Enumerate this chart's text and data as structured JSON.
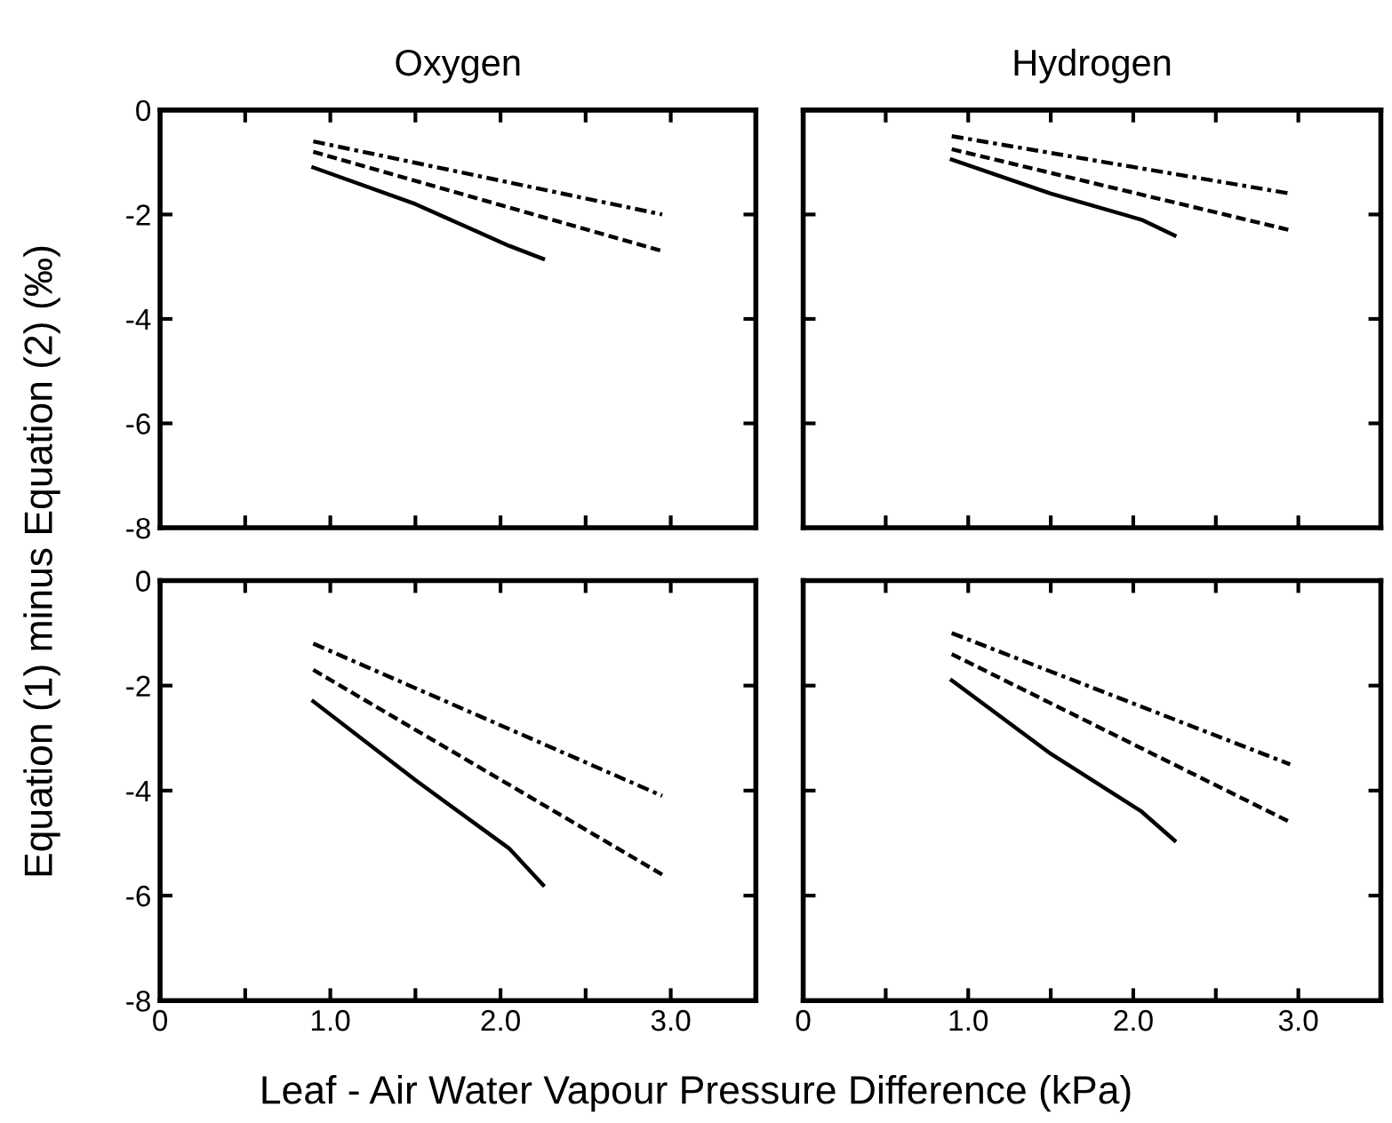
{
  "chart_data": [
    {
      "type": "line",
      "title": "Oxygen",
      "ylabel": "Equation (1) minus Equation (2) (‰)",
      "xlim": [
        0,
        3.5
      ],
      "ylim": [
        -8,
        0
      ],
      "xticks": [
        {
          "value": 0.5,
          "label": null
        },
        {
          "value": 1.0,
          "label": null
        },
        {
          "value": 1.5,
          "label": null
        },
        {
          "value": 2.0,
          "label": null
        },
        {
          "value": 2.5,
          "label": null
        },
        {
          "value": 3.0,
          "label": null
        }
      ],
      "yticks": [
        -8,
        -6,
        -4,
        -2,
        0
      ],
      "tick_labels": "y",
      "grid": false,
      "series": [
        {
          "color": "#000000",
          "line_style": "solid",
          "x": [
            0.9,
            1.5,
            2.05,
            2.25
          ],
          "values": [
            -1.1,
            -1.8,
            -2.6,
            -2.85
          ]
        },
        {
          "color": "#000000",
          "line_style": "dashed",
          "x": [
            0.9,
            2.95
          ],
          "values": [
            -0.8,
            -2.7
          ]
        },
        {
          "color": "#000000",
          "line_style": "dashdot",
          "x": [
            0.9,
            2.95
          ],
          "values": [
            -0.6,
            -2.0
          ]
        }
      ]
    },
    {
      "type": "line",
      "title": "Hydrogen",
      "xlim": [
        0,
        3.5
      ],
      "ylim": [
        -8,
        0
      ],
      "xticks": [
        {
          "value": 0.5,
          "label": null
        },
        {
          "value": 1.0,
          "label": null
        },
        {
          "value": 1.5,
          "label": null
        },
        {
          "value": 2.0,
          "label": null
        },
        {
          "value": 2.5,
          "label": null
        },
        {
          "value": 3.0,
          "label": null
        }
      ],
      "yticks": [
        {
          "value": -6,
          "label": null
        },
        {
          "value": -4,
          "label": null
        },
        {
          "value": -2,
          "label": null
        }
      ],
      "tick_labels": false,
      "grid": false,
      "series": [
        {
          "color": "#000000",
          "line_style": "solid",
          "x": [
            0.9,
            1.5,
            2.05,
            2.25
          ],
          "values": [
            -0.95,
            -1.6,
            -2.1,
            -2.4
          ]
        },
        {
          "color": "#000000",
          "line_style": "dashed",
          "x": [
            0.9,
            2.95
          ],
          "values": [
            -0.75,
            -2.3
          ]
        },
        {
          "color": "#000000",
          "line_style": "dashdot",
          "x": [
            0.9,
            2.95
          ],
          "values": [
            -0.5,
            -1.6
          ]
        }
      ]
    },
    {
      "type": "line",
      "xlabel": "Leaf - Air Water Vapour Pressure Difference (kPa)",
      "xlim": [
        0,
        3.5
      ],
      "ylim": [
        -8,
        0
      ],
      "xticks": [
        0,
        {
          "value": 0.5,
          "label": null
        },
        {
          "value": 1.0,
          "label": "1.0"
        },
        {
          "value": 1.5,
          "label": null
        },
        {
          "value": 2.0,
          "label": "2.0"
        },
        {
          "value": 2.5,
          "label": null
        },
        {
          "value": 3.0,
          "label": "3.0"
        }
      ],
      "yticks": [
        -8,
        -6,
        -4,
        -2,
        0
      ],
      "grid": false,
      "series": [
        {
          "color": "#000000",
          "line_style": "solid",
          "x": [
            0.9,
            1.5,
            2.05,
            2.25
          ],
          "values": [
            -2.3,
            -3.8,
            -5.1,
            -5.8
          ]
        },
        {
          "color": "#000000",
          "line_style": "dashed",
          "x": [
            0.9,
            2.95
          ],
          "values": [
            -1.7,
            -5.6
          ]
        },
        {
          "color": "#000000",
          "line_style": "dashdot",
          "x": [
            0.9,
            2.95
          ],
          "values": [
            -1.2,
            -4.1
          ]
        }
      ]
    },
    {
      "type": "line",
      "xlim": [
        0,
        3.5
      ],
      "ylim": [
        -8,
        0
      ],
      "xticks": [
        0,
        {
          "value": 0.5,
          "label": null
        },
        {
          "value": 1.0,
          "label": "1.0"
        },
        {
          "value": 1.5,
          "label": null
        },
        {
          "value": 2.0,
          "label": "2.0"
        },
        {
          "value": 2.5,
          "label": null
        },
        {
          "value": 3.0,
          "label": "3.0"
        }
      ],
      "yticks": [
        {
          "value": -6,
          "label": null
        },
        {
          "value": -4,
          "label": null
        },
        {
          "value": -2,
          "label": null
        }
      ],
      "tick_labels": "x",
      "grid": false,
      "series": [
        {
          "color": "#000000",
          "line_style": "solid",
          "x": [
            0.9,
            1.5,
            2.05,
            2.25
          ],
          "values": [
            -1.9,
            -3.3,
            -4.4,
            -4.95
          ]
        },
        {
          "color": "#000000",
          "line_style": "dashed",
          "x": [
            0.9,
            2.95
          ],
          "values": [
            -1.4,
            -4.6
          ]
        },
        {
          "color": "#000000",
          "line_style": "dashdot",
          "x": [
            0.9,
            2.95
          ],
          "values": [
            -1.0,
            -3.5
          ]
        }
      ]
    }
  ]
}
